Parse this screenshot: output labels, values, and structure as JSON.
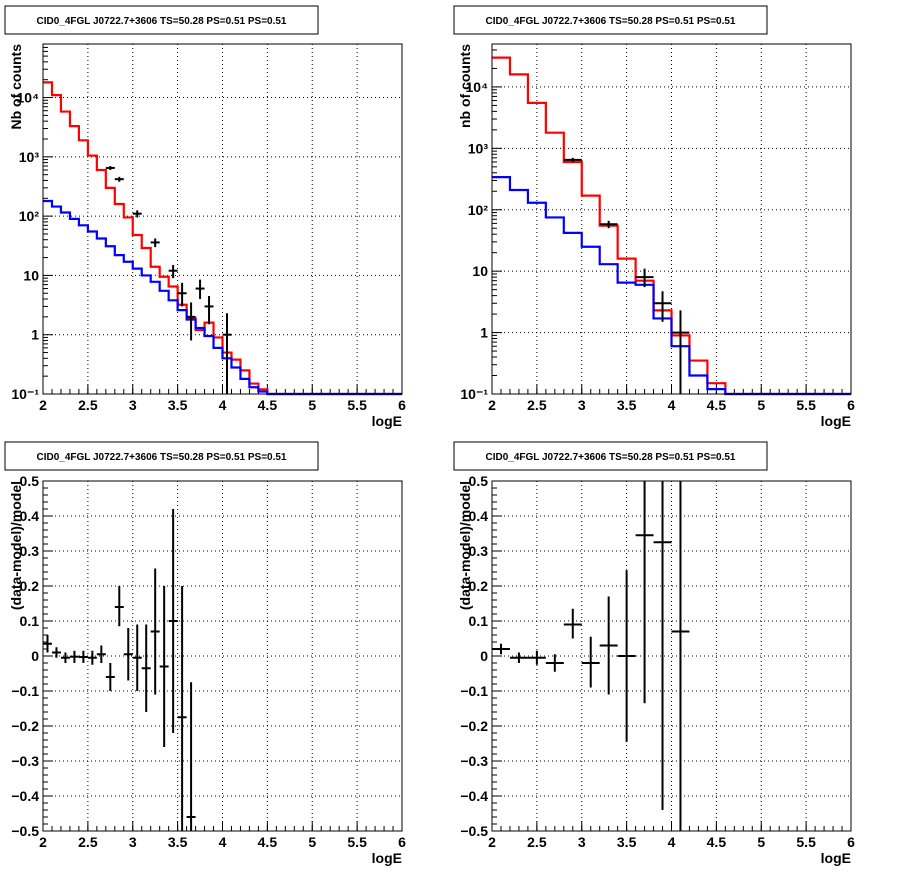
{
  "chart_data": [
    {
      "type": "step-histogram",
      "title": "CID0_4FGL J0722.7+3606 TS=50.28 PS=0.51 PS=0.51",
      "xlabel": "logE",
      "ylabel": "Nb of counts",
      "xlim": [
        2,
        6
      ],
      "ylim": [
        0.1,
        80000
      ],
      "yscale": "log",
      "grid": true,
      "xticks": [
        "2",
        "2.5",
        "3",
        "3.5",
        "4",
        "4.5",
        "5",
        "5.5",
        "6"
      ],
      "yticks": [
        {
          "v": 0.1,
          "l": "10⁻¹"
        },
        {
          "v": 1,
          "l": "1"
        },
        {
          "v": 10,
          "l": "10"
        },
        {
          "v": 100,
          "l": "10²"
        },
        {
          "v": 1000,
          "l": "10³"
        },
        {
          "v": 10000,
          "l": "10⁴"
        }
      ],
      "bin_edges": [
        2.0,
        2.1,
        2.2,
        2.3,
        2.4,
        2.5,
        2.6,
        2.7,
        2.8,
        2.9,
        3.0,
        3.1,
        3.2,
        3.3,
        3.4,
        3.5,
        3.6,
        3.7,
        3.8,
        3.9,
        4.0,
        4.1,
        4.2,
        4.3,
        4.4,
        4.5,
        4.6,
        6.0
      ],
      "series": [
        {
          "color": "#ff0000",
          "values": [
            18000,
            11000,
            5800,
            3300,
            1900,
            1050,
            600,
            300,
            160,
            95,
            48,
            29,
            14,
            9.5,
            6.5,
            3.2,
            1.9,
            1.2,
            1.6,
            0.9,
            0.5,
            0.38,
            0.25,
            0.15,
            0.12,
            0.1,
            0.1
          ]
        },
        {
          "color": "#0000ff",
          "values": [
            180,
            145,
            115,
            90,
            70,
            55,
            42,
            31,
            22,
            17,
            13,
            10,
            7.8,
            5.5,
            3.8,
            2.6,
            1.8,
            1.3,
            0.95,
            0.6,
            0.4,
            0.28,
            0.18,
            0.13,
            0.11,
            0.1,
            0.1
          ]
        }
      ],
      "data_points": [
        {
          "x": 2.75,
          "y": 650,
          "ylo": 600,
          "yhi": 700,
          "xerr": 0.05
        },
        {
          "x": 2.85,
          "y": 420,
          "ylo": 380,
          "yhi": 460,
          "xerr": 0.05
        },
        {
          "x": 3.05,
          "y": 110,
          "ylo": 95,
          "yhi": 125,
          "xerr": 0.05
        },
        {
          "x": 3.25,
          "y": 36,
          "ylo": 30,
          "yhi": 42,
          "xerr": 0.05
        },
        {
          "x": 3.45,
          "y": 12,
          "ylo": 9,
          "yhi": 15,
          "xerr": 0.05
        },
        {
          "x": 3.55,
          "y": 5,
          "ylo": 3,
          "yhi": 7.5,
          "xerr": 0.05
        },
        {
          "x": 3.65,
          "y": 2,
          "ylo": 0.8,
          "yhi": 3.5,
          "xerr": 0.05
        },
        {
          "x": 3.75,
          "y": 6,
          "ylo": 4,
          "yhi": 8.5,
          "xerr": 0.05
        },
        {
          "x": 3.85,
          "y": 3,
          "ylo": 1.5,
          "yhi": 4.5,
          "xerr": 0.05
        },
        {
          "x": 4.05,
          "y": 1,
          "ylo": 0.1,
          "yhi": 2.3,
          "xerr": 0.05
        }
      ]
    },
    {
      "type": "step-histogram",
      "title": "CID0_4FGL J0722.7+3606 TS=50.28 PS=0.51 PS=0.51",
      "xlabel": "logE",
      "ylabel": "nb of counts",
      "xlim": [
        2,
        6
      ],
      "ylim": [
        0.1,
        50000
      ],
      "yscale": "log",
      "grid": true,
      "xticks": [
        "2",
        "2.5",
        "3",
        "3.5",
        "4",
        "4.5",
        "5",
        "5.5",
        "6"
      ],
      "yticks": [
        {
          "v": 0.1,
          "l": "10⁻¹"
        },
        {
          "v": 1,
          "l": "1"
        },
        {
          "v": 10,
          "l": "10"
        },
        {
          "v": 100,
          "l": "10²"
        },
        {
          "v": 1000,
          "l": "10³"
        },
        {
          "v": 10000,
          "l": "10⁴"
        }
      ],
      "bin_edges": [
        2.0,
        2.2,
        2.4,
        2.6,
        2.8,
        3.0,
        3.2,
        3.4,
        3.6,
        3.8,
        4.0,
        4.2,
        4.4,
        4.6,
        6.0
      ],
      "series": [
        {
          "color": "#ff0000",
          "values": [
            30000,
            16000,
            5500,
            1800,
            600,
            170,
            55,
            16,
            7,
            2.3,
            0.9,
            0.35,
            0.15,
            0.1
          ]
        },
        {
          "color": "#0000ff",
          "values": [
            340,
            210,
            130,
            75,
            42,
            25,
            13,
            6.5,
            6,
            1.7,
            0.6,
            0.2,
            0.12,
            0.1
          ]
        }
      ],
      "data_points": [
        {
          "x": 2.9,
          "y": 650,
          "ylo": 600,
          "yhi": 700,
          "xerr": 0.1
        },
        {
          "x": 3.3,
          "y": 58,
          "ylo": 50,
          "yhi": 66,
          "xerr": 0.1
        },
        {
          "x": 3.7,
          "y": 8,
          "ylo": 5.5,
          "yhi": 11,
          "xerr": 0.1
        },
        {
          "x": 3.9,
          "y": 3,
          "ylo": 1.5,
          "yhi": 4.7,
          "xerr": 0.1
        },
        {
          "x": 4.1,
          "y": 1,
          "ylo": 0.1,
          "yhi": 2.3,
          "xerr": 0.1
        }
      ]
    },
    {
      "type": "scatter-errorbars",
      "title": "CID0_4FGL J0722.7+3606 TS=50.28 PS=0.51 PS=0.51",
      "xlabel": "logE",
      "ylabel": "(data-model)/model",
      "xlim": [
        2,
        6
      ],
      "ylim": [
        -0.5,
        0.5
      ],
      "yscale": "linear",
      "grid": true,
      "xticks": [
        "2",
        "2.5",
        "3",
        "3.5",
        "4",
        "4.5",
        "5",
        "5.5",
        "6"
      ],
      "yticks": [
        {
          "v": -0.5,
          "l": "−0.5"
        },
        {
          "v": -0.4,
          "l": "−0.4"
        },
        {
          "v": -0.3,
          "l": "−0.3"
        },
        {
          "v": -0.2,
          "l": "−0.2"
        },
        {
          "v": -0.1,
          "l": "−0.1"
        },
        {
          "v": 0,
          "l": "0"
        },
        {
          "v": 0.1,
          "l": "0.1"
        },
        {
          "v": 0.2,
          "l": "0.2"
        },
        {
          "v": 0.3,
          "l": "0.3"
        },
        {
          "v": 0.4,
          "l": "0.4"
        },
        {
          "v": 0.5,
          "l": "0.5"
        }
      ],
      "data_points": [
        {
          "x": 2.05,
          "y": 0.035,
          "ylo": 0.01,
          "yhi": 0.06,
          "xerr": 0.05
        },
        {
          "x": 2.15,
          "y": 0.01,
          "ylo": -0.005,
          "yhi": 0.025,
          "xerr": 0.05
        },
        {
          "x": 2.25,
          "y": -0.005,
          "ylo": -0.02,
          "yhi": 0.01,
          "xerr": 0.05
        },
        {
          "x": 2.35,
          "y": -0.002,
          "ylo": -0.02,
          "yhi": 0.015,
          "xerr": 0.05
        },
        {
          "x": 2.45,
          "y": -0.003,
          "ylo": -0.02,
          "yhi": 0.015,
          "xerr": 0.05
        },
        {
          "x": 2.55,
          "y": -0.005,
          "ylo": -0.025,
          "yhi": 0.015,
          "xerr": 0.05
        },
        {
          "x": 2.65,
          "y": 0.005,
          "ylo": -0.02,
          "yhi": 0.03,
          "xerr": 0.05
        },
        {
          "x": 2.75,
          "y": -0.06,
          "ylo": -0.1,
          "yhi": -0.02,
          "xerr": 0.05
        },
        {
          "x": 2.85,
          "y": 0.14,
          "ylo": 0.085,
          "yhi": 0.2,
          "xerr": 0.05
        },
        {
          "x": 2.95,
          "y": 0.005,
          "ylo": -0.07,
          "yhi": 0.08,
          "xerr": 0.05
        },
        {
          "x": 3.05,
          "y": -0.005,
          "ylo": -0.1,
          "yhi": 0.09,
          "xerr": 0.05
        },
        {
          "x": 3.15,
          "y": -0.035,
          "ylo": -0.16,
          "yhi": 0.09,
          "xerr": 0.05
        },
        {
          "x": 3.25,
          "y": 0.07,
          "ylo": -0.11,
          "yhi": 0.25,
          "xerr": 0.05
        },
        {
          "x": 3.35,
          "y": -0.03,
          "ylo": -0.26,
          "yhi": 0.2,
          "xerr": 0.05
        },
        {
          "x": 3.45,
          "y": 0.1,
          "ylo": -0.22,
          "yhi": 0.42,
          "xerr": 0.05
        },
        {
          "x": 3.55,
          "y": -0.175,
          "ylo": -0.5,
          "yhi": 0.2,
          "xerr": 0.05
        },
        {
          "x": 3.65,
          "y": -0.46,
          "ylo": -0.5,
          "yhi": -0.075,
          "xerr": 0.05
        }
      ]
    },
    {
      "type": "scatter-errorbars",
      "title": "CID0_4FGL J0722.7+3606 TS=50.28 PS=0.51 PS=0.51",
      "xlabel": "logE",
      "ylabel": "(data-model)/model",
      "xlim": [
        2,
        6
      ],
      "ylim": [
        -0.5,
        0.5
      ],
      "yscale": "linear",
      "grid": true,
      "xticks": [
        "2",
        "2.5",
        "3",
        "3.5",
        "4",
        "4.5",
        "5",
        "5.5",
        "6"
      ],
      "yticks": [
        {
          "v": -0.5,
          "l": "−0.5"
        },
        {
          "v": -0.4,
          "l": "−0.4"
        },
        {
          "v": -0.3,
          "l": "−0.3"
        },
        {
          "v": -0.2,
          "l": "−0.2"
        },
        {
          "v": -0.1,
          "l": "−0.1"
        },
        {
          "v": 0,
          "l": "0"
        },
        {
          "v": 0.1,
          "l": "0.1"
        },
        {
          "v": 0.2,
          "l": "0.2"
        },
        {
          "v": 0.3,
          "l": "0.3"
        },
        {
          "v": 0.4,
          "l": "0.4"
        },
        {
          "v": 0.5,
          "l": "0.5"
        }
      ],
      "data_points": [
        {
          "x": 2.1,
          "y": 0.02,
          "ylo": 0.005,
          "yhi": 0.035,
          "xerr": 0.1
        },
        {
          "x": 2.3,
          "y": -0.005,
          "ylo": -0.02,
          "yhi": 0.01,
          "xerr": 0.1
        },
        {
          "x": 2.5,
          "y": -0.005,
          "ylo": -0.025,
          "yhi": 0.015,
          "xerr": 0.1
        },
        {
          "x": 2.7,
          "y": -0.02,
          "ylo": -0.045,
          "yhi": 0.005,
          "xerr": 0.1
        },
        {
          "x": 2.9,
          "y": 0.09,
          "ylo": 0.05,
          "yhi": 0.135,
          "xerr": 0.1
        },
        {
          "x": 3.1,
          "y": -0.02,
          "ylo": -0.09,
          "yhi": 0.055,
          "xerr": 0.1
        },
        {
          "x": 3.3,
          "y": 0.03,
          "ylo": -0.11,
          "yhi": 0.17,
          "xerr": 0.1
        },
        {
          "x": 3.5,
          "y": 0.0,
          "ylo": -0.245,
          "yhi": 0.245,
          "xerr": 0.1
        },
        {
          "x": 3.7,
          "y": 0.345,
          "ylo": -0.135,
          "yhi": 0.5,
          "xerr": 0.1
        },
        {
          "x": 3.9,
          "y": 0.325,
          "ylo": -0.44,
          "yhi": 0.5,
          "xerr": 0.1
        },
        {
          "x": 4.1,
          "y": 0.07,
          "ylo": -0.5,
          "yhi": 0.5,
          "xerr": 0.1
        }
      ]
    }
  ]
}
